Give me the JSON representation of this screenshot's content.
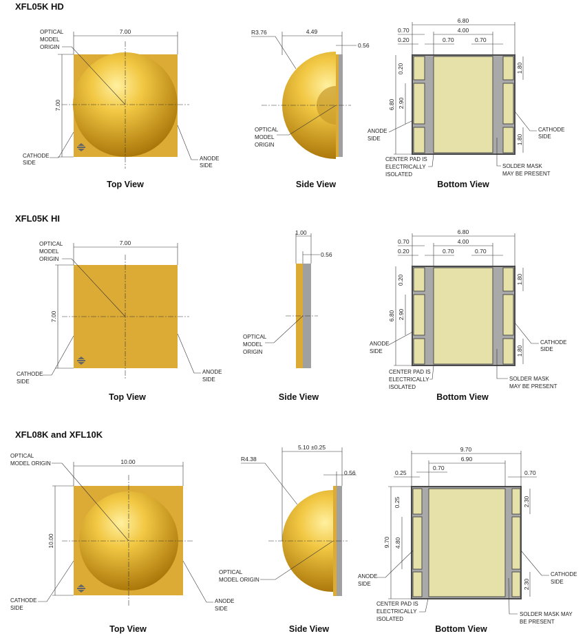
{
  "colors": {
    "package": "#dcab36",
    "dome": "#f5cf52",
    "pad": "#e5e1a8",
    "body": "#a9a9a9"
  },
  "icons": {
    "polarity": "polarity-arrows-icon"
  },
  "sections": [
    {
      "title": "XFL05K HD",
      "top": {
        "width": "7.00",
        "height": "7.00",
        "origin": [
          "OPTICAL",
          "MODEL",
          "ORIGIN"
        ],
        "cathode": [
          "CATHODE",
          "SIDE"
        ],
        "anode": [
          "ANODE",
          "SIDE"
        ],
        "caption": "Top View"
      },
      "side": {
        "radius": "R3.76",
        "width": "4.49",
        "substrate": "0.56",
        "origin": [
          "OPTICAL",
          "MODEL",
          "ORIGIN"
        ],
        "caption": "Side View"
      },
      "bottom": {
        "width": "6.80",
        "edge": "0.70",
        "center": "4.00",
        "gap_l": "0.70",
        "gap_r": "0.70",
        "offset": "0.20",
        "height": "6.80",
        "offset_v": "0.20",
        "mid_pad": "2.90",
        "pad_top": "1.80",
        "pad_bot": "1.80",
        "anode": [
          "ANODE",
          "SIDE"
        ],
        "cathode": [
          "CATHODE",
          "SIDE"
        ],
        "center_note": [
          "CENTER PAD IS",
          "ELECTRICALLY",
          "ISOLATED"
        ],
        "mask_note": [
          "SOLDER MASK",
          "MAY BE PRESENT"
        ],
        "caption": "Bottom View"
      }
    },
    {
      "title": "XFL05K HI",
      "top": {
        "width": "7.00",
        "height": "7.00",
        "origin": [
          "OPTICAL",
          "MODEL",
          "ORIGIN"
        ],
        "cathode": [
          "CATHODE",
          "SIDE"
        ],
        "anode": [
          "ANODE",
          "SIDE"
        ],
        "caption": "Top View"
      },
      "side": {
        "width": "1.00",
        "substrate": "0.56",
        "origin": [
          "OPTICAL",
          "MODEL",
          "ORIGIN"
        ],
        "caption": "Side View"
      },
      "bottom": {
        "width": "6.80",
        "edge": "0.70",
        "center": "4.00",
        "gap_l": "0.70",
        "gap_r": "0.70",
        "offset": "0.20",
        "height": "6.80",
        "offset_v": "0.20",
        "mid_pad": "2.90",
        "pad_top": "1.80",
        "pad_bot": "1.80",
        "anode": [
          "ANODE",
          "SIDE"
        ],
        "cathode": [
          "CATHODE",
          "SIDE"
        ],
        "center_note": [
          "CENTER PAD IS",
          "ELECTRICALLY",
          "ISOLATED"
        ],
        "mask_note": [
          "SOLDER MASK",
          "MAY BE PRESENT"
        ],
        "caption": "Bottom View"
      }
    },
    {
      "title": "XFL08K and XFL10K",
      "top": {
        "width": "10.00",
        "height": "10.00",
        "origin": [
          "OPTICAL",
          "MODEL ORIGIN"
        ],
        "cathode": [
          "CATHODE",
          "SIDE"
        ],
        "anode": [
          "ANODE",
          "SIDE"
        ],
        "caption": "Top View"
      },
      "side": {
        "radius": "R4.38",
        "width": "5.10 ±0.25",
        "substrate": "0.56",
        "origin": [
          "OPTICAL",
          "MODEL ORIGIN"
        ],
        "caption": "Side View"
      },
      "bottom": {
        "width": "9.70",
        "center": "6.90",
        "gap_l": "0.70",
        "offset": "0.25",
        "gap_r": "0.70",
        "height": "9.70",
        "offset_v": "0.25",
        "mid_pad": "4.80",
        "pad_top": "2.30",
        "pad_bot": "2.30",
        "anode": [
          "ANODE",
          "SIDE"
        ],
        "cathode": [
          "CATHODE",
          "SIDE"
        ],
        "center_note": [
          "CENTER PAD IS",
          "ELECTRICALLY",
          "ISOLATED"
        ],
        "mask_note": [
          "SOLDER MASK MAY",
          "BE PRESENT"
        ],
        "caption": "Bottom View"
      }
    }
  ]
}
